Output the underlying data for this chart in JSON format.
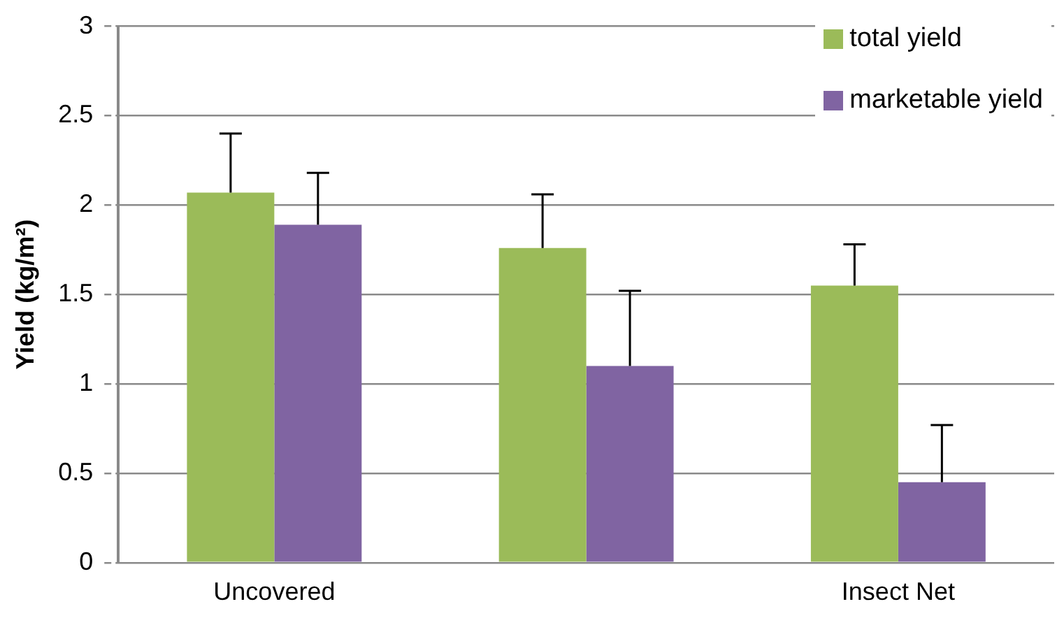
{
  "chart_data": {
    "type": "bar",
    "ylabel": "Yield (kg/m²)",
    "categories": [
      "Uncovered",
      null,
      "Insect Net"
    ],
    "series": [
      {
        "name": "total yield",
        "color": "#9bbb59",
        "values": [
          2.07,
          1.76,
          1.55
        ],
        "errors": [
          [
            2.07,
            2.4
          ],
          [
            1.76,
            2.06
          ],
          [
            1.55,
            1.78
          ]
        ]
      },
      {
        "name": "marketable yield",
        "color": "#8064a2",
        "values": [
          1.89,
          1.1,
          0.45
        ],
        "errors": [
          [
            1.89,
            2.18
          ],
          [
            1.1,
            1.52
          ],
          [
            0.45,
            0.77
          ]
        ]
      }
    ],
    "ylim": [
      0,
      3
    ],
    "yticks": [
      0,
      0.5,
      1,
      1.5,
      2,
      2.5,
      3
    ],
    "grid": "y",
    "legend": "top right"
  }
}
